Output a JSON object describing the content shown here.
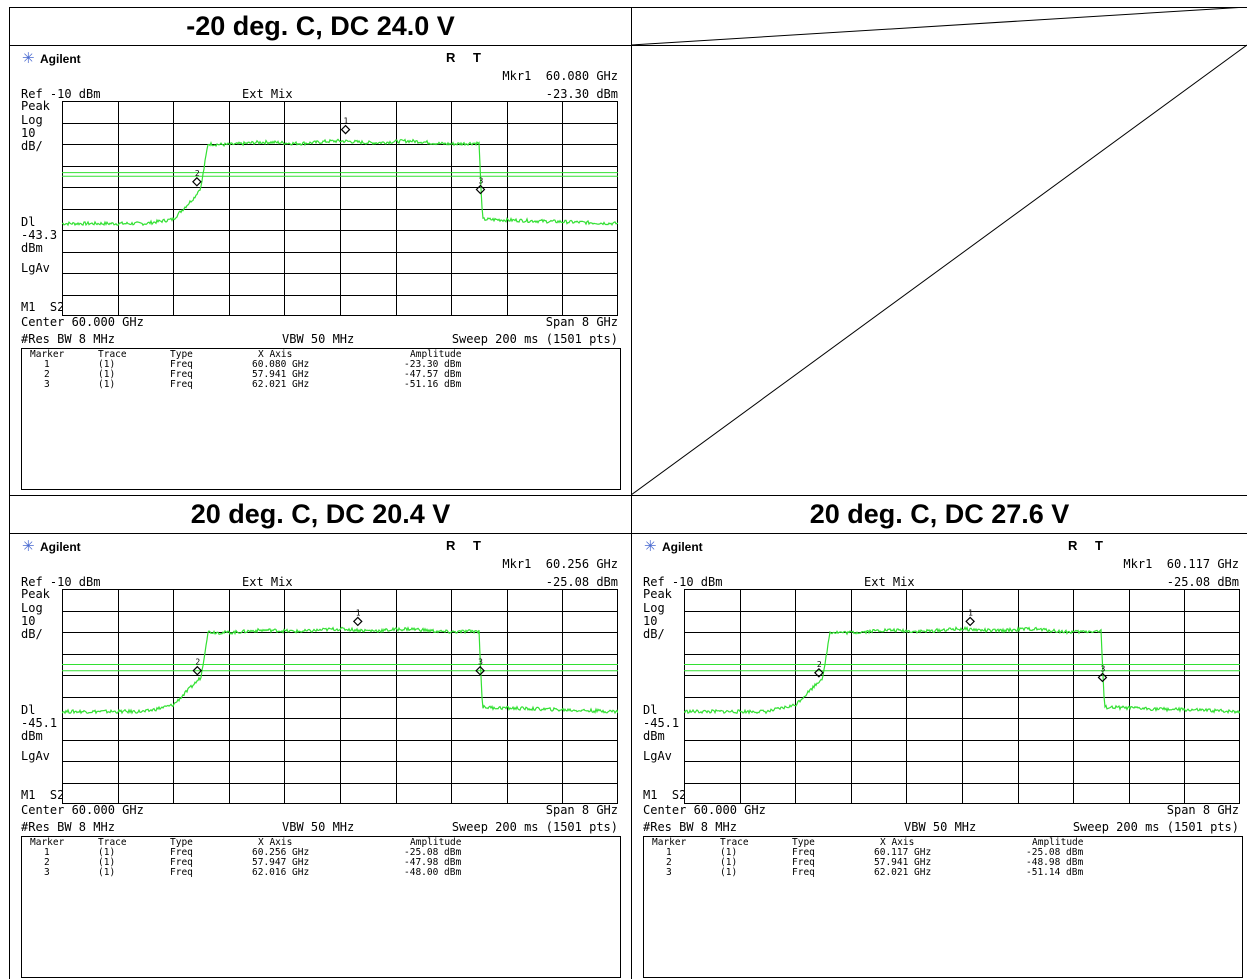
{
  "panels": [
    {
      "title": "-20 deg. C, DC 24.0 V",
      "brand": "Agilent",
      "rt": "R T",
      "mkr_readout": "Mkr1  60.080 GHz",
      "mkr_amp": "-23.30 dBm",
      "ref": "Ref -10 dBm",
      "mode": "Ext Mix",
      "left_labels": {
        "peak": "Peak",
        "log": "Log",
        "scale": "10",
        "unit": "dB/",
        "dl": "Dl",
        "dl_val": "-43.3",
        "dl_unit": "dBm",
        "avg": "LgAv",
        "m1": "M1  S2"
      },
      "center": "Center 60.000 GHz",
      "span": "Span 8 GHz",
      "res_bw": "#Res BW 8 MHz",
      "vbw": "VBW 50 MHz",
      "sweep": "Sweep 200 ms (1501 pts)",
      "table_header": [
        "Marker",
        "Trace",
        "Type",
        "X Axis",
        "Amplitude"
      ],
      "markers": [
        [
          "1",
          "(1)",
          "Freq",
          "60.080 GHz",
          "-23.30 dBm"
        ],
        [
          "2",
          "(1)",
          "Freq",
          "57.941 GHz",
          "-47.57 dBm"
        ],
        [
          "3",
          "(1)",
          "Freq",
          "62.021 GHz",
          "-51.16 dBm"
        ]
      ]
    },
    {
      "title": "20 deg. C, DC 20.4 V",
      "brand": "Agilent",
      "rt": "R T",
      "mkr_readout": "Mkr1  60.256 GHz",
      "mkr_amp": "-25.08 dBm",
      "ref": "Ref -10 dBm",
      "mode": "Ext Mix",
      "left_labels": {
        "peak": "Peak",
        "log": "Log",
        "scale": "10",
        "unit": "dB/",
        "dl": "Dl",
        "dl_val": "-45.1",
        "dl_unit": "dBm",
        "avg": "LgAv",
        "m1": "M1  S2"
      },
      "center": "Center 60.000 GHz",
      "span": "Span 8 GHz",
      "res_bw": "#Res BW 8 MHz",
      "vbw": "VBW 50 MHz",
      "sweep": "Sweep 200 ms (1501 pts)",
      "table_header": [
        "Marker",
        "Trace",
        "Type",
        "X Axis",
        "Amplitude"
      ],
      "markers": [
        [
          "1",
          "(1)",
          "Freq",
          "60.256 GHz",
          "-25.08 dBm"
        ],
        [
          "2",
          "(1)",
          "Freq",
          "57.947 GHz",
          "-47.98 dBm"
        ],
        [
          "3",
          "(1)",
          "Freq",
          "62.016 GHz",
          "-48.00 dBm"
        ]
      ]
    },
    {
      "title": "20 deg. C, DC 27.6 V",
      "brand": "Agilent",
      "rt": "R T",
      "mkr_readout": "Mkr1  60.117 GHz",
      "mkr_amp": "-25.08 dBm",
      "ref": "Ref -10 dBm",
      "mode": "Ext Mix",
      "left_labels": {
        "peak": "Peak",
        "log": "Log",
        "scale": "10",
        "unit": "dB/",
        "dl": "Dl",
        "dl_val": "-45.1",
        "dl_unit": "dBm",
        "avg": "LgAv",
        "m1": "M1  S2"
      },
      "center": "Center 60.000 GHz",
      "span": "Span 8 GHz",
      "res_bw": "#Res BW 8 MHz",
      "vbw": "VBW 50 MHz",
      "sweep": "Sweep 200 ms (1501 pts)",
      "table_header": [
        "Marker",
        "Trace",
        "Type",
        "X Axis",
        "Amplitude"
      ],
      "markers": [
        [
          "1",
          "(1)",
          "Freq",
          "60.117 GHz",
          "-25.08 dBm"
        ],
        [
          "2",
          "(1)",
          "Freq",
          "57.941 GHz",
          "-48.98 dBm"
        ],
        [
          "3",
          "(1)",
          "Freq",
          "62.021 GHz",
          "-51.14 dBm"
        ]
      ]
    }
  ],
  "chart_data": [
    {
      "type": "line",
      "ylim": [
        -110,
        -10
      ],
      "xlim": [
        56,
        64
      ],
      "colors": {
        "trace": "#33e033",
        "display_line": "#33e033",
        "grid": "#000000"
      },
      "series": [
        {
          "x": [
            56.0,
            57.2,
            57.6,
            57.9,
            58.0,
            58.1,
            60.0,
            61.0,
            62.0,
            62.05,
            64.0
          ],
          "values": [
            -67,
            -67,
            -65,
            -55,
            -50,
            -30,
            -29,
            -29,
            -30,
            -65,
            -67
          ]
        }
      ],
      "display_lines": [
        -43.3,
        -45.0
      ],
      "markers": [
        {
          "x": 60.08,
          "y": -23.3
        },
        {
          "x": 57.941,
          "y": -47.57
        },
        {
          "x": 62.021,
          "y": -51.16
        }
      ]
    },
    {
      "type": "line",
      "ylim": [
        -110,
        -10
      ],
      "xlim": [
        56,
        64
      ],
      "colors": {
        "trace": "#33e033",
        "display_line": "#33e033",
        "grid": "#000000"
      },
      "series": [
        {
          "x": [
            56.0,
            57.2,
            57.6,
            58.0,
            58.1,
            60.0,
            61.0,
            62.0,
            62.05,
            64.0
          ],
          "values": [
            -67,
            -67,
            -64,
            -51,
            -30,
            -29,
            -29,
            -30,
            -65,
            -67
          ]
        }
      ],
      "display_lines": [
        -45.1,
        -48.0
      ],
      "markers": [
        {
          "x": 60.256,
          "y": -25.08
        },
        {
          "x": 57.947,
          "y": -47.98
        },
        {
          "x": 62.016,
          "y": -48.0
        }
      ]
    },
    {
      "type": "line",
      "ylim": [
        -110,
        -10
      ],
      "xlim": [
        56,
        64
      ],
      "colors": {
        "trace": "#33e033",
        "display_line": "#33e033",
        "grid": "#000000"
      },
      "series": [
        {
          "x": [
            56.0,
            57.2,
            57.6,
            58.0,
            58.1,
            60.0,
            61.0,
            62.0,
            62.05,
            64.0
          ],
          "values": [
            -67,
            -67,
            -64,
            -51,
            -30,
            -29,
            -29,
            -30,
            -65,
            -67
          ]
        }
      ],
      "display_lines": [
        -45.1,
        -48.0
      ],
      "markers": [
        {
          "x": 60.117,
          "y": -25.08
        },
        {
          "x": 57.941,
          "y": -48.98
        },
        {
          "x": 62.021,
          "y": -51.14
        }
      ]
    }
  ]
}
